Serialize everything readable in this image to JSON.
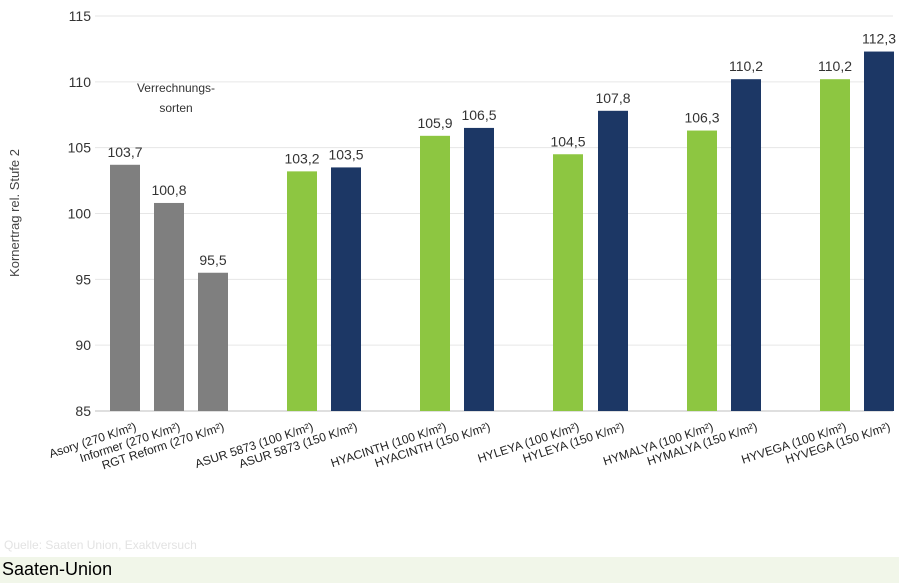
{
  "chart_data": {
    "type": "bar",
    "ylabel": "Kornertrag rel. Stufe 2",
    "ylim": [
      85,
      115
    ],
    "yticks": [
      85,
      90,
      95,
      100,
      105,
      110,
      115
    ],
    "grid": true,
    "annotation": [
      "Verrechnungs-",
      "sorten"
    ],
    "bars": [
      {
        "category": "Asory (270 K/m²)",
        "value": 103.7,
        "label": "103,7",
        "color": "#7f7f7f"
      },
      {
        "category": "Informer  (270 K/m²)",
        "value": 100.8,
        "label": "100,8",
        "color": "#7f7f7f"
      },
      {
        "category": "RGT Reform  (270 K/m²)",
        "value": 95.5,
        "label": "95,5",
        "color": "#7f7f7f"
      },
      {
        "category": "ASUR 5873 (100 K/m²)",
        "value": 103.2,
        "label": "103,2",
        "color": "#8dc641"
      },
      {
        "category": "ASUR 5873 (150 K/m²)",
        "value": 103.5,
        "label": "103,5",
        "color": "#1c3765"
      },
      {
        "category": "HYACINTH  (100 K/m²)",
        "value": 105.9,
        "label": "105,9",
        "color": "#8dc641"
      },
      {
        "category": "HYACINTH  (150 K/m²)",
        "value": 106.5,
        "label": "106,5",
        "color": "#1c3765"
      },
      {
        "category": "HYLEYA  (100 K/m²)",
        "value": 104.5,
        "label": "104,5",
        "color": "#8dc641"
      },
      {
        "category": "HYLEYA  (150 K/m²)",
        "value": 107.8,
        "label": "107,8",
        "color": "#1c3765"
      },
      {
        "category": "HYMALYA  (100 K/m²)",
        "value": 106.3,
        "label": "106,3",
        "color": "#8dc641"
      },
      {
        "category": "HYMALYA  (150 K/m²)",
        "value": 110.2,
        "label": "110,2",
        "color": "#1c3765"
      },
      {
        "category": "HYVEGA  (100 K/m²)",
        "value": 110.2,
        "label": "110,2",
        "color": "#8dc641"
      },
      {
        "category": "HYVEGA  (150 K/m²)",
        "value": 112.3,
        "label": "112,3",
        "color": "#1c3765"
      }
    ]
  },
  "source": "Quelle: Saaten Union, Exaktversuch",
  "footer": "Saaten-Union"
}
